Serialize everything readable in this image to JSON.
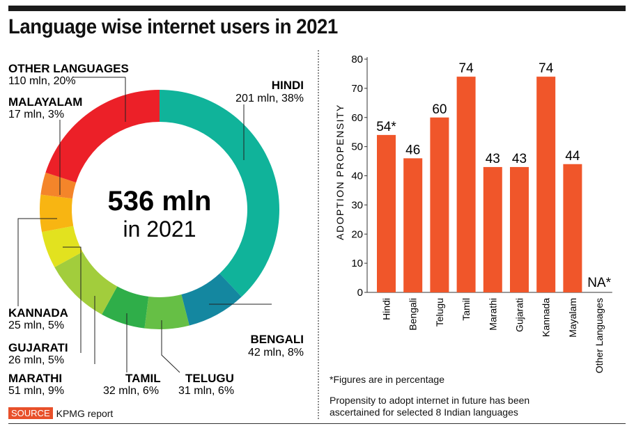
{
  "title": "Language wise internet users in 2021",
  "source": {
    "tag": "SOURCE",
    "text": "KPMG report"
  },
  "center": {
    "main": "536 mln",
    "sub": "in 2021"
  },
  "notes": {
    "footnote": "*Figures are in percentage",
    "propensity_line1": "Propensity to adopt internet in future has been",
    "propensity_line2": "ascertained for selected 8 Indian languages"
  },
  "colors": {
    "accent": "#e8502a",
    "topbar": "#1b1b1b"
  },
  "chart_data": [
    {
      "type": "pie",
      "title": "Language wise internet users in 2021",
      "total_label": "536 mln in 2021",
      "slices": [
        {
          "name": "HINDI",
          "value": 38,
          "label": "201 mln, 38%",
          "color": "#10b39a"
        },
        {
          "name": "BENGALI",
          "value": 8,
          "label": "42 mln, 8%",
          "color": "#1487a0"
        },
        {
          "name": "TELUGU",
          "value": 6,
          "label": "31 mln, 6%",
          "color": "#66bf45"
        },
        {
          "name": "TAMIL",
          "value": 6,
          "label": "32 mln, 6%",
          "color": "#2fae49"
        },
        {
          "name": "MARATHI",
          "value": 9,
          "label": "51 mln, 9%",
          "color": "#a2cd3c"
        },
        {
          "name": "GUJARATI",
          "value": 5,
          "label": "26 mln, 5%",
          "color": "#e2e21f"
        },
        {
          "name": "KANNADA",
          "value": 5,
          "label": "25 mln, 5%",
          "color": "#f8b512"
        },
        {
          "name": "MALAYALAM",
          "value": 3,
          "label": "17 mln, 3%",
          "color": "#f4852a"
        },
        {
          "name": "OTHER LANGUAGES",
          "value": 20,
          "label": "110 mln, 20%",
          "color": "#ec2028"
        }
      ]
    },
    {
      "type": "bar",
      "categories": [
        "Hindi",
        "Bengali",
        "Telugu",
        "Tamil",
        "Marathi",
        "Gujarati",
        "Kannada",
        "Mayalam",
        "Other Languages"
      ],
      "values": [
        54,
        46,
        60,
        74,
        43,
        43,
        74,
        44,
        null
      ],
      "value_labels": [
        "54*",
        "46",
        "60",
        "74",
        "43",
        "43",
        "74",
        "44",
        "NA*"
      ],
      "ylabel": "ADOPTION PROPENSITY",
      "xlabel": "",
      "ylim": [
        0,
        80
      ],
      "yticks": [
        0,
        10,
        20,
        30,
        40,
        50,
        60,
        70,
        80
      ],
      "grid": false,
      "bar_color": "#f0562a"
    }
  ]
}
